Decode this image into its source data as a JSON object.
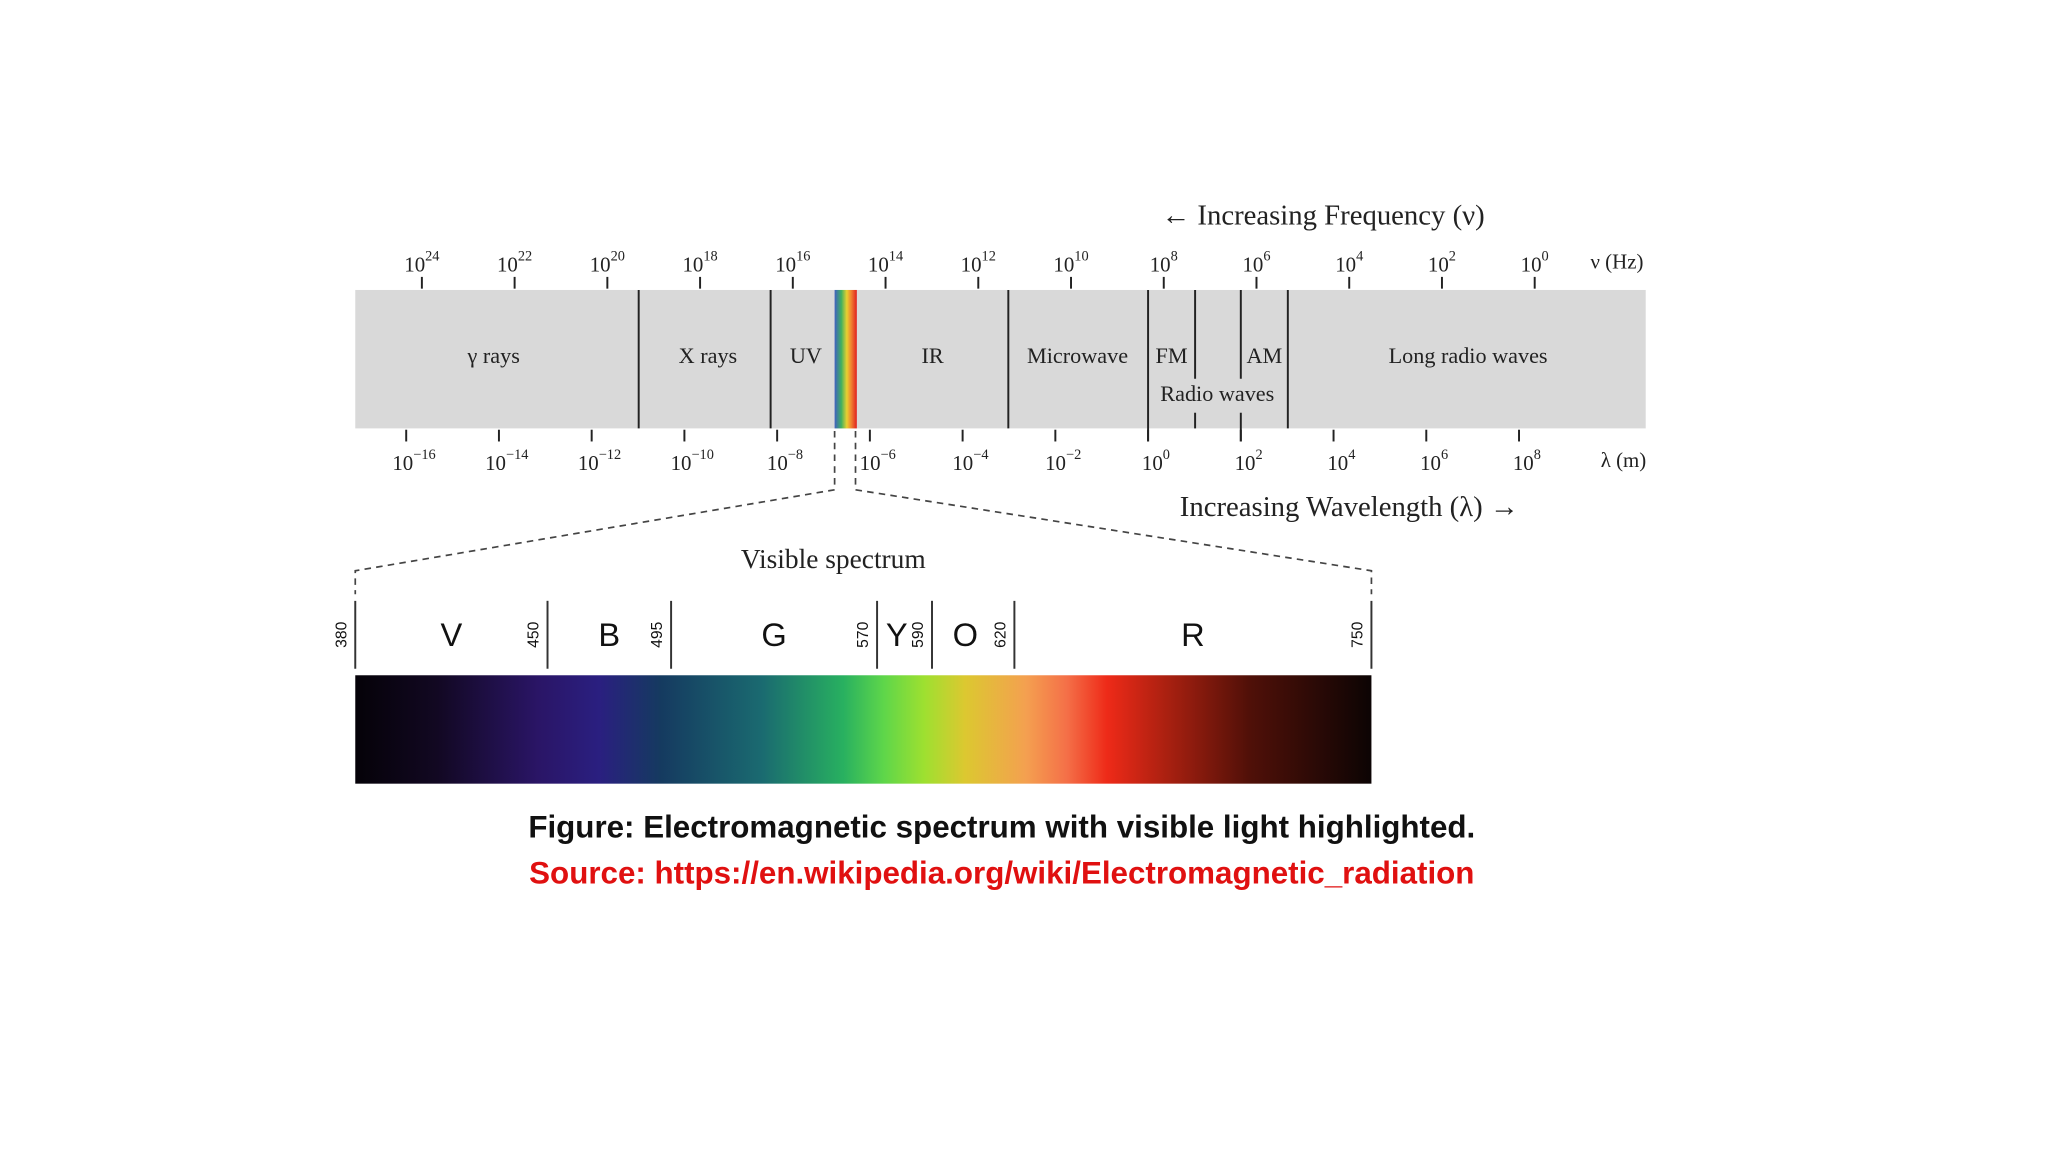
{
  "frequency_axis": {
    "header": "← Increasing Frequency (ν)",
    "unit": "ν (Hz)",
    "ticks": [
      {
        "base": "10",
        "exponent": "24"
      },
      {
        "base": "10",
        "exponent": "22"
      },
      {
        "base": "10",
        "exponent": "20"
      },
      {
        "base": "10",
        "exponent": "18"
      },
      {
        "base": "10",
        "exponent": "16"
      },
      {
        "base": "10",
        "exponent": "14"
      },
      {
        "base": "10",
        "exponent": "12"
      },
      {
        "base": "10",
        "exponent": "10"
      },
      {
        "base": "10",
        "exponent": "8"
      },
      {
        "base": "10",
        "exponent": "6"
      },
      {
        "base": "10",
        "exponent": "4"
      },
      {
        "base": "10",
        "exponent": "2"
      },
      {
        "base": "10",
        "exponent": "0"
      }
    ]
  },
  "bands": [
    "γ rays",
    "X rays",
    "UV",
    "IR",
    "Microwave",
    "FM",
    "AM",
    "Long radio waves"
  ],
  "radio_label": "Radio waves",
  "wavelength_axis": {
    "header": "Increasing Wavelength (λ) →",
    "unit": "λ (m)",
    "ticks": [
      {
        "base": "10",
        "exponent": "−16"
      },
      {
        "base": "10",
        "exponent": "−14"
      },
      {
        "base": "10",
        "exponent": "−12"
      },
      {
        "base": "10",
        "exponent": "−10"
      },
      {
        "base": "10",
        "exponent": "−8"
      },
      {
        "base": "10",
        "exponent": "−6"
      },
      {
        "base": "10",
        "exponent": "−4"
      },
      {
        "base": "10",
        "exponent": "−2"
      },
      {
        "base": "10",
        "exponent": "0"
      },
      {
        "base": "10",
        "exponent": "2"
      },
      {
        "base": "10",
        "exponent": "4"
      },
      {
        "base": "10",
        "exponent": "6"
      },
      {
        "base": "10",
        "exponent": "8"
      }
    ]
  },
  "visible_spectrum": {
    "title": "Visible spectrum",
    "boundaries": [
      380,
      450,
      495,
      570,
      590,
      620,
      750
    ],
    "colors": [
      "V",
      "B",
      "G",
      "Y",
      "O",
      "R"
    ]
  },
  "caption": {
    "figure": "Figure: Electromagnetic spectrum with visible light highlighted.",
    "source": "Source: https://en.wikipedia.org/wiki/Electromagnetic_radiation"
  }
}
